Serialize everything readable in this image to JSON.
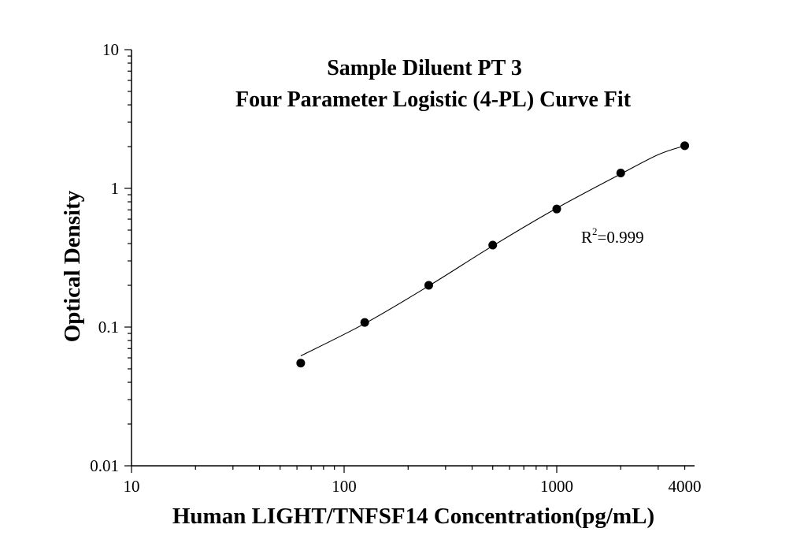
{
  "chart_data": {
    "type": "scatter",
    "title": "Sample Diluent PT 3",
    "subtitle": "Four Parameter Logistic (4-PL) Curve Fit",
    "xlabel": "Human LIGHT/TNFSF14 Concentration(pg/mL)",
    "ylabel": "Optical Density",
    "xscale": "log",
    "yscale": "log",
    "xlim": [
      10,
      5000
    ],
    "ylim": [
      0.01,
      10
    ],
    "x_tick_labels": [
      "10",
      "100",
      "1000",
      "4000"
    ],
    "x_tick_values": [
      10,
      100,
      1000,
      4000
    ],
    "y_tick_labels": [
      "0.01",
      "0.1",
      "1",
      "10"
    ],
    "y_tick_values": [
      0.01,
      0.1,
      1,
      10
    ],
    "grid": false,
    "legend": "none",
    "series": [
      {
        "points": [
          {
            "x": 62.5,
            "y": 0.055
          },
          {
            "x": 125,
            "y": 0.108
          },
          {
            "x": 250,
            "y": 0.2
          },
          {
            "x": 500,
            "y": 0.39
          },
          {
            "x": 1000,
            "y": 0.71
          },
          {
            "x": 2000,
            "y": 1.29
          },
          {
            "x": 4000,
            "y": 2.03
          }
        ]
      }
    ],
    "fit_curve": {
      "model": "4-PL",
      "points": [
        {
          "x": 62.5,
          "y": 0.062
        },
        {
          "x": 125,
          "y": 0.106
        },
        {
          "x": 250,
          "y": 0.198
        },
        {
          "x": 500,
          "y": 0.385
        },
        {
          "x": 1000,
          "y": 0.72
        },
        {
          "x": 2000,
          "y": 1.27
        },
        {
          "x": 3000,
          "y": 1.75
        },
        {
          "x": 4000,
          "y": 2.03
        }
      ]
    },
    "annotation": {
      "prefix": "R",
      "superscript": "2",
      "suffix": "=0.999"
    }
  }
}
